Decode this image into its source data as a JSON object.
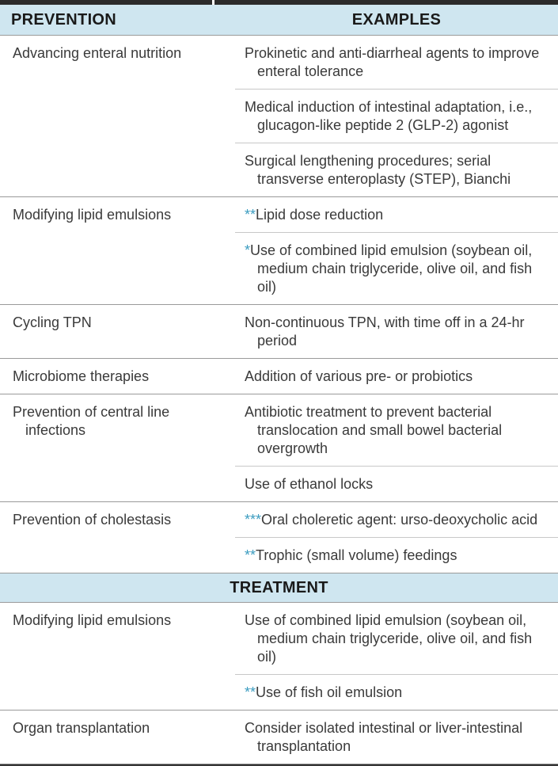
{
  "header": {
    "prevention": "PREVENTION",
    "examples": "EXAMPLES"
  },
  "prevention_rows": [
    {
      "label": "Advancing enteral nutrition",
      "examples": [
        {
          "stars": "",
          "text": "Prokinetic and anti-diarrheal agents to improve enteral tolerance"
        },
        {
          "stars": "",
          "text": "Medical induction of intestinal adaptation, i.e., glucagon-like peptide 2 (GLP-2) agonist"
        },
        {
          "stars": "",
          "text": "Surgical lengthening procedures; serial transverse enteroplasty (STEP), Bianchi"
        }
      ]
    },
    {
      "label": "Modifying lipid emulsions",
      "examples": [
        {
          "stars": "**",
          "text": "Lipid dose reduction"
        },
        {
          "stars": "*",
          "text": "Use of combined lipid emulsion (soybean oil, medium chain triglyceride, olive oil, and fish oil)"
        }
      ]
    },
    {
      "label": "Cycling TPN",
      "examples": [
        {
          "stars": "",
          "text": "Non-continuous TPN, with time off in a 24-hr period"
        }
      ]
    },
    {
      "label": "Microbiome therapies",
      "examples": [
        {
          "stars": "",
          "text": "Addition of various pre- or probiotics"
        }
      ]
    },
    {
      "label": "Prevention of central line infections",
      "examples": [
        {
          "stars": "",
          "text": "Antibiotic treatment to prevent bacterial translocation and small bowel bacterial overgrowth"
        },
        {
          "stars": "",
          "text": "Use of ethanol locks"
        }
      ]
    },
    {
      "label": "Prevention of cholestasis",
      "examples": [
        {
          "stars": "***",
          "text": "Oral choleretic agent: urso-deoxycholic acid"
        },
        {
          "stars": "**",
          "text": "Trophic (small volume) feedings"
        }
      ]
    }
  ],
  "treatment_header": "TREATMENT",
  "treatment_rows": [
    {
      "label": "Modifying lipid emulsions",
      "examples": [
        {
          "stars": "",
          "text": "Use of combined lipid emulsion (soybean oil, medium chain triglyceride, olive oil, and fish oil)"
        },
        {
          "stars": "**",
          "text": "Use of fish oil emulsion"
        }
      ]
    },
    {
      "label": "Organ transplantation",
      "examples": [
        {
          "stars": "",
          "text": "Consider isolated intestinal or liver-intestinal transplantation"
        }
      ]
    }
  ],
  "colors": {
    "header_bg": "#cfe6f0",
    "star": "#3b9cc0",
    "rule": "#2b2b2b"
  }
}
